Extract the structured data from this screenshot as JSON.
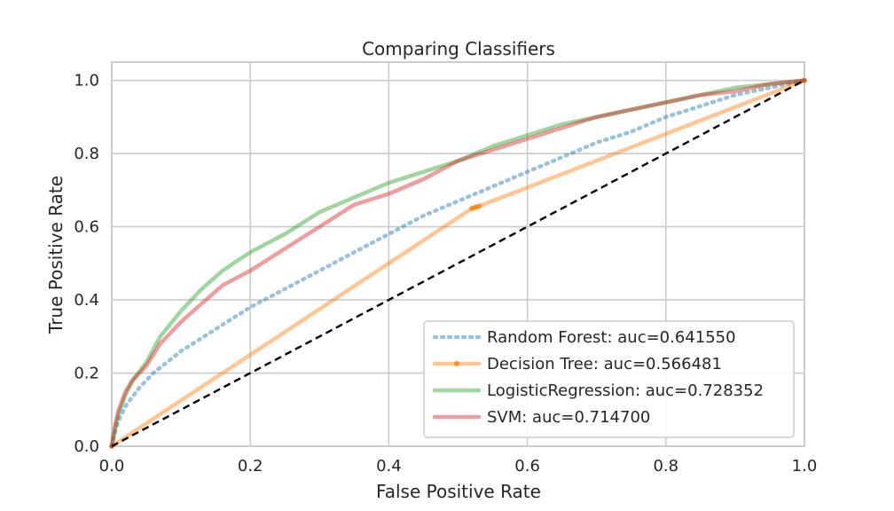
{
  "chart_data": {
    "type": "line",
    "title": "Comparing Classifiers",
    "xlabel": "False Positive Rate",
    "ylabel": "True Positive Rate",
    "xlim": [
      0.0,
      1.0
    ],
    "ylim": [
      0.0,
      1.05
    ],
    "x_ticks": [
      0.0,
      0.2,
      0.4,
      0.6,
      0.8,
      1.0
    ],
    "y_ticks": [
      0.0,
      0.2,
      0.4,
      0.6,
      0.8,
      1.0
    ],
    "x_tick_labels": [
      "0.0",
      "0.2",
      "0.4",
      "0.6",
      "0.8",
      "1.0"
    ],
    "y_tick_labels": [
      "0.0",
      "0.2",
      "0.4",
      "0.6",
      "0.8",
      "1.0"
    ],
    "grid": true,
    "legend_position": "lower-right",
    "series": [
      {
        "name": "Random Forest: auc=0.641550",
        "color": "#1f77b4",
        "style": "dotted",
        "marker": "none",
        "x": [
          0.0,
          0.005,
          0.01,
          0.02,
          0.04,
          0.06,
          0.08,
          0.1,
          0.15,
          0.2,
          0.25,
          0.3,
          0.35,
          0.4,
          0.45,
          0.5,
          0.55,
          0.6,
          0.65,
          0.7,
          0.75,
          0.8,
          0.85,
          0.9,
          0.95,
          1.0
        ],
        "y": [
          0.0,
          0.04,
          0.07,
          0.11,
          0.16,
          0.2,
          0.23,
          0.26,
          0.32,
          0.38,
          0.43,
          0.48,
          0.53,
          0.58,
          0.63,
          0.67,
          0.71,
          0.75,
          0.79,
          0.83,
          0.86,
          0.9,
          0.93,
          0.96,
          0.98,
          1.0
        ]
      },
      {
        "name": "Decision Tree: auc=0.566481",
        "color": "#ff7f0e",
        "style": "solid",
        "marker": "dot",
        "x": [
          0.0,
          0.52,
          0.525,
          0.53,
          1.0
        ],
        "y": [
          0.0,
          0.65,
          0.653,
          0.656,
          1.0
        ]
      },
      {
        "name": "LogisticRegression: auc=0.728352",
        "color": "#2ca02c",
        "style": "solid",
        "marker": "none",
        "x": [
          0.0,
          0.005,
          0.01,
          0.02,
          0.03,
          0.05,
          0.07,
          0.1,
          0.13,
          0.16,
          0.2,
          0.25,
          0.3,
          0.35,
          0.4,
          0.45,
          0.5,
          0.55,
          0.6,
          0.65,
          0.7,
          0.75,
          0.8,
          0.85,
          0.9,
          0.95,
          1.0
        ],
        "y": [
          0.0,
          0.05,
          0.09,
          0.14,
          0.18,
          0.23,
          0.3,
          0.37,
          0.43,
          0.48,
          0.53,
          0.58,
          0.64,
          0.68,
          0.72,
          0.75,
          0.78,
          0.82,
          0.85,
          0.88,
          0.9,
          0.92,
          0.94,
          0.96,
          0.98,
          0.99,
          1.0
        ]
      },
      {
        "name": "SVM: auc=0.714700",
        "color": "#d62728",
        "style": "solid",
        "marker": "none",
        "x": [
          0.0,
          0.005,
          0.01,
          0.02,
          0.03,
          0.05,
          0.07,
          0.1,
          0.13,
          0.16,
          0.2,
          0.25,
          0.3,
          0.35,
          0.4,
          0.45,
          0.5,
          0.55,
          0.6,
          0.65,
          0.7,
          0.75,
          0.8,
          0.85,
          0.9,
          0.95,
          1.0
        ],
        "y": [
          0.0,
          0.06,
          0.1,
          0.15,
          0.18,
          0.22,
          0.28,
          0.34,
          0.39,
          0.44,
          0.48,
          0.54,
          0.6,
          0.66,
          0.69,
          0.73,
          0.78,
          0.81,
          0.84,
          0.87,
          0.9,
          0.92,
          0.94,
          0.96,
          0.97,
          0.99,
          1.0
        ]
      }
    ],
    "reference_line": {
      "color": "#000000",
      "style": "dashed",
      "x": [
        0.0,
        1.0
      ],
      "y": [
        0.0,
        1.0
      ]
    }
  }
}
